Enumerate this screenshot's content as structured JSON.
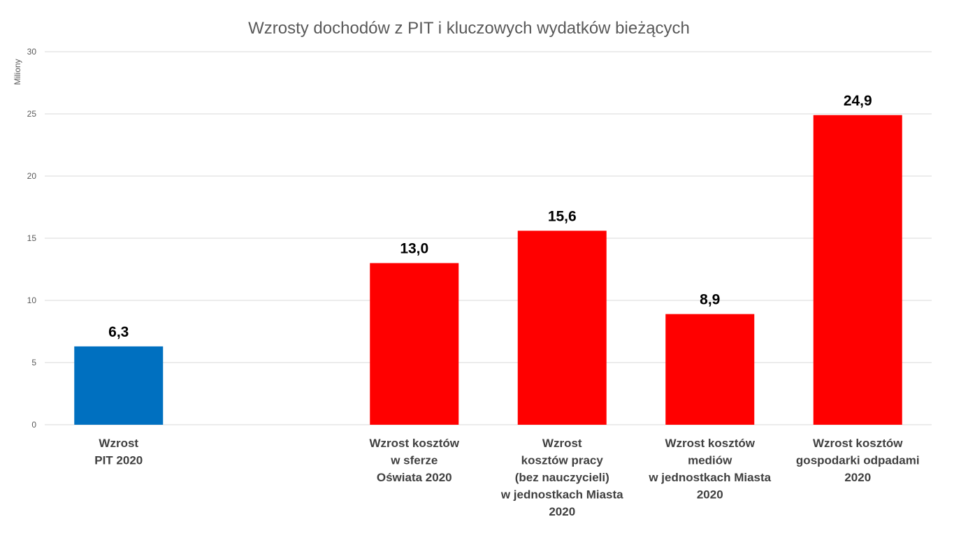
{
  "chart_data": {
    "type": "bar",
    "title": "Wzrosty dochodów z PIT i kluczowych wydatków bieżących",
    "ylabel": "Miliony",
    "ylim": [
      0,
      30
    ],
    "yticks": [
      0,
      5,
      10,
      15,
      20,
      25,
      30
    ],
    "grid": true,
    "categories": [
      [
        "Wzrost",
        "PIT 2020"
      ],
      [],
      [
        "Wzrost kosztów",
        "w sferze",
        "Oświata 2020"
      ],
      [
        "Wzrost",
        "kosztów pracy",
        "(bez nauczycieli)",
        "w jednostkach Miasta",
        "2020"
      ],
      [
        "Wzrost kosztów",
        "mediów",
        "w jednostkach Miasta",
        "2020"
      ],
      [
        "Wzrost kosztów",
        "gospodarki odpadami",
        "2020"
      ]
    ],
    "values": [
      6.3,
      null,
      13.0,
      15.6,
      8.9,
      24.9
    ],
    "data_labels": [
      "6,3",
      "",
      "13,0",
      "15,6",
      "8,9",
      "24,9"
    ],
    "colors": [
      "#0070c0",
      "#ff0000",
      "#ff0000",
      "#ff0000",
      "#ff0000",
      "#ff0000"
    ]
  }
}
